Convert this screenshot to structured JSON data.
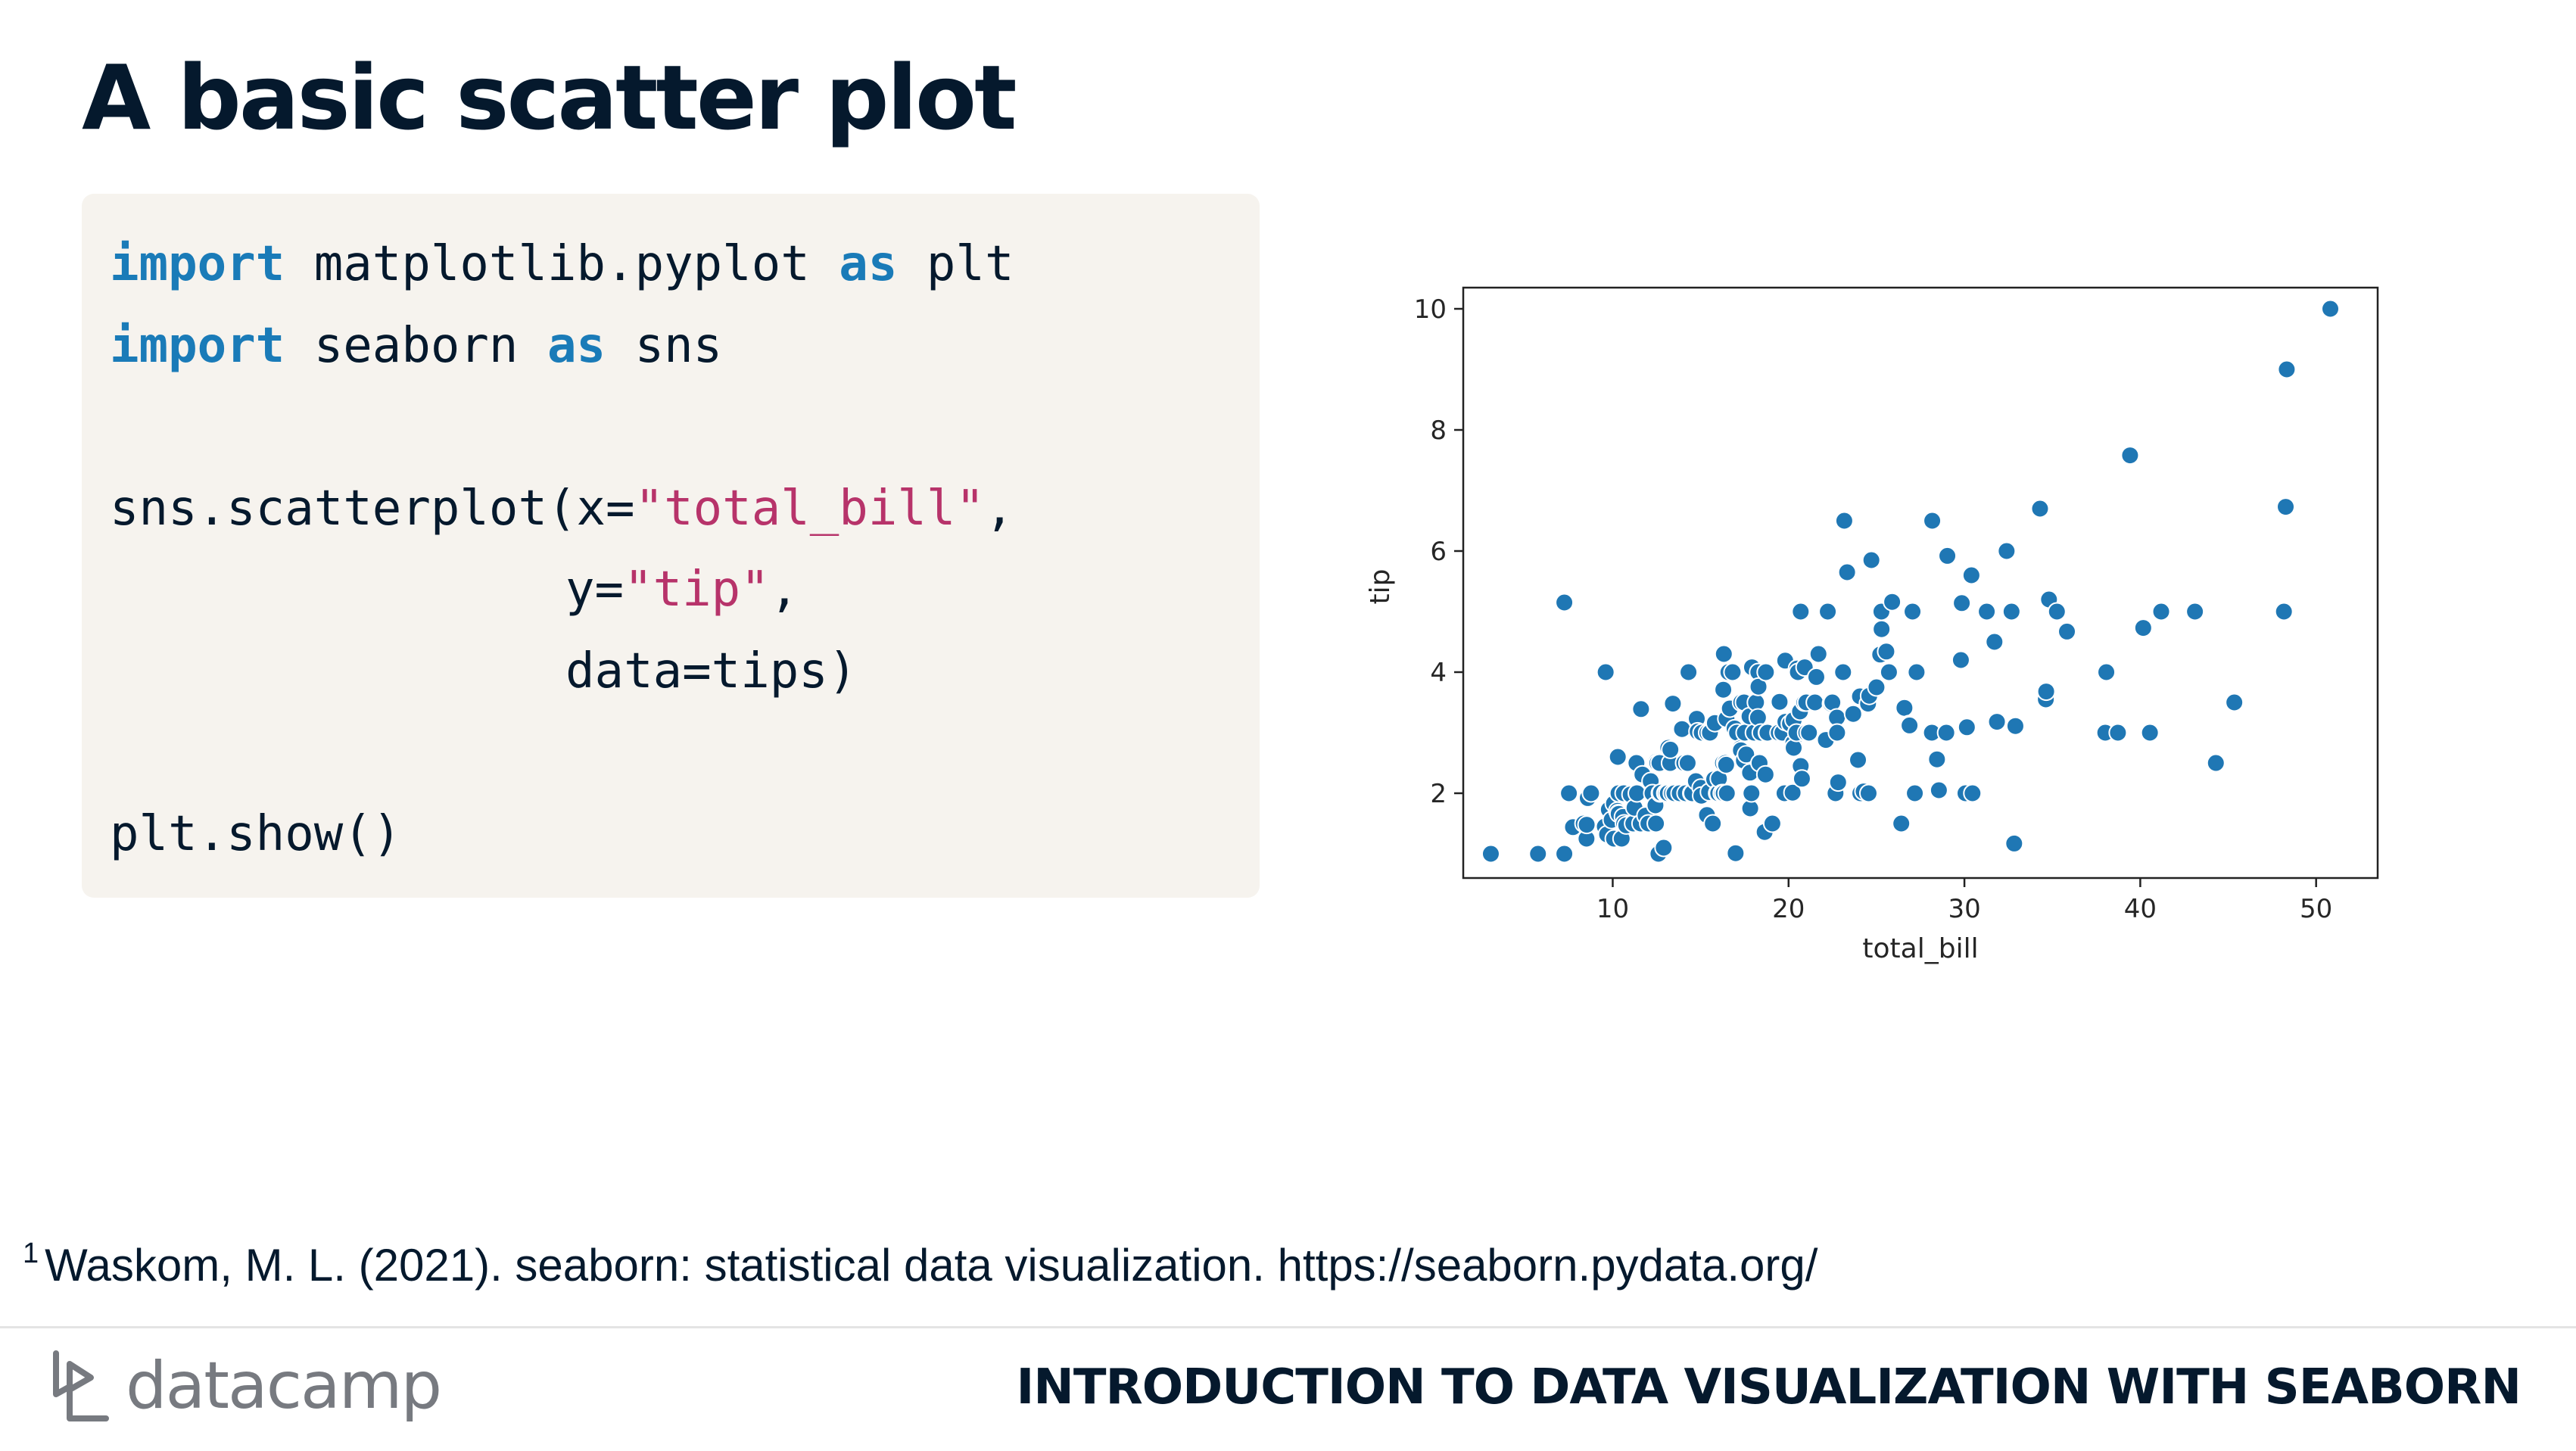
{
  "slide": {
    "title": "A basic scatter plot"
  },
  "code": {
    "line1": {
      "kw1": "import",
      "rest1": " matplotlib.pyplot ",
      "kw2": "as",
      "rest2": " plt"
    },
    "line2": {
      "kw1": "import",
      "rest1": " seaborn ",
      "kw2": "as",
      "rest2": " sns"
    },
    "line4": {
      "pre": "sns.scatterplot(x=",
      "str": "\"total_bill\"",
      "post": ","
    },
    "line5": {
      "pre": "y=",
      "str": "\"tip\"",
      "post": ","
    },
    "line6": {
      "text": "data=tips)"
    },
    "line8": {
      "text": "plt.show()"
    }
  },
  "footnote": {
    "marker": "1",
    "text": "Waskom, M. L. (2021). seaborn: statistical data visualization. https://seaborn.pydata.org/"
  },
  "footer": {
    "brand": "datacamp",
    "course_title": "INTRODUCTION TO DATA VISUALIZATION WITH SEABORN"
  },
  "colors": {
    "point": "#1f77b4",
    "keyword": "#1a7bb8",
    "string": "#b7336a",
    "title": "#05192d",
    "code_bg": "#f6f3ee"
  },
  "chart_data": {
    "type": "scatter",
    "title": "",
    "xlabel": "total_bill",
    "ylabel": "tip",
    "xlim": [
      1.5,
      53.5
    ],
    "ylim": [
      0.6,
      10.35
    ],
    "x_ticks": [
      10,
      20,
      30,
      40,
      50
    ],
    "y_ticks": [
      2,
      4,
      6,
      8,
      10
    ],
    "grid": false,
    "series": [
      {
        "points": [
          [
            3.07,
            1.0
          ],
          [
            5.75,
            1.0
          ],
          [
            7.25,
            1.0
          ],
          [
            7.25,
            5.15
          ],
          [
            7.51,
            2.0
          ],
          [
            7.74,
            1.44
          ],
          [
            8.35,
            1.5
          ],
          [
            8.51,
            1.25
          ],
          [
            8.52,
            1.48
          ],
          [
            8.58,
            1.92
          ],
          [
            8.77,
            2.0
          ],
          [
            9.55,
            1.45
          ],
          [
            9.6,
            4.0
          ],
          [
            9.68,
            1.32
          ],
          [
            9.78,
            1.73
          ],
          [
            9.94,
            1.56
          ],
          [
            10.07,
            1.25
          ],
          [
            10.07,
            1.83
          ],
          [
            10.27,
            1.71
          ],
          [
            10.29,
            2.6
          ],
          [
            10.33,
            1.67
          ],
          [
            10.33,
            2.0
          ],
          [
            10.34,
            1.66
          ],
          [
            10.51,
            1.25
          ],
          [
            10.59,
            1.61
          ],
          [
            10.63,
            2.0
          ],
          [
            10.65,
            1.5
          ],
          [
            10.77,
            1.47
          ],
          [
            11.02,
            1.98
          ],
          [
            11.17,
            1.5
          ],
          [
            11.24,
            1.76
          ],
          [
            11.35,
            2.5
          ],
          [
            11.38,
            2.0
          ],
          [
            11.59,
            1.5
          ],
          [
            11.61,
            3.39
          ],
          [
            11.69,
            2.31
          ],
          [
            11.87,
            1.63
          ],
          [
            12.03,
            1.5
          ],
          [
            12.16,
            2.2
          ],
          [
            12.26,
            2.0
          ],
          [
            12.43,
            1.8
          ],
          [
            12.46,
            1.5
          ],
          [
            12.48,
            2.52
          ],
          [
            12.54,
            2.5
          ],
          [
            12.6,
            1.0
          ],
          [
            12.66,
            2.5
          ],
          [
            12.69,
            2.0
          ],
          [
            12.74,
            2.01
          ],
          [
            12.9,
            1.1
          ],
          [
            13.0,
            2.0
          ],
          [
            13.03,
            2.0
          ],
          [
            13.13,
            2.0
          ],
          [
            13.16,
            2.75
          ],
          [
            13.27,
            2.5
          ],
          [
            13.28,
            2.72
          ],
          [
            13.37,
            2.0
          ],
          [
            13.42,
            3.48
          ],
          [
            13.51,
            2.0
          ],
          [
            13.81,
            2.0
          ],
          [
            13.94,
            3.06
          ],
          [
            14.07,
            2.5
          ],
          [
            14.15,
            2.0
          ],
          [
            14.26,
            2.5
          ],
          [
            14.31,
            4.0
          ],
          [
            14.48,
            2.0
          ],
          [
            14.52,
            2.0
          ],
          [
            14.73,
            2.2
          ],
          [
            14.78,
            3.23
          ],
          [
            14.83,
            3.02
          ],
          [
            15.01,
            2.09
          ],
          [
            15.04,
            1.96
          ],
          [
            15.06,
            3.0
          ],
          [
            15.36,
            1.64
          ],
          [
            15.38,
            3.0
          ],
          [
            15.48,
            2.02
          ],
          [
            15.53,
            3.0
          ],
          [
            15.69,
            1.5
          ],
          [
            15.77,
            2.23
          ],
          [
            15.81,
            3.16
          ],
          [
            15.95,
            2.0
          ],
          [
            16.0,
            2.0
          ],
          [
            16.04,
            2.24
          ],
          [
            16.21,
            2.0
          ],
          [
            16.27,
            2.5
          ],
          [
            16.29,
            3.71
          ],
          [
            16.31,
            2.0
          ],
          [
            16.32,
            4.3
          ],
          [
            16.4,
            2.5
          ],
          [
            16.45,
            2.47
          ],
          [
            16.47,
            3.23
          ],
          [
            16.49,
            2.0
          ],
          [
            16.58,
            4.0
          ],
          [
            16.66,
            3.4
          ],
          [
            16.82,
            4.0
          ],
          [
            16.93,
            3.07
          ],
          [
            16.97,
            1.0
          ],
          [
            16.99,
            1.01
          ],
          [
            17.07,
            3.0
          ],
          [
            17.26,
            2.74
          ],
          [
            17.29,
            2.71
          ],
          [
            17.31,
            3.5
          ],
          [
            17.46,
            2.54
          ],
          [
            17.47,
            3.5
          ],
          [
            17.51,
            3.0
          ],
          [
            17.59,
            2.64
          ],
          [
            17.78,
            3.27
          ],
          [
            17.81,
            2.34
          ],
          [
            17.82,
            1.75
          ],
          [
            17.89,
            2.0
          ],
          [
            17.92,
            4.08
          ],
          [
            18.04,
            3.0
          ],
          [
            18.15,
            3.5
          ],
          [
            18.24,
            3.76
          ],
          [
            18.26,
            3.25
          ],
          [
            18.28,
            4.0
          ],
          [
            18.29,
            3.76
          ],
          [
            18.35,
            2.5
          ],
          [
            18.43,
            3.0
          ],
          [
            18.64,
            1.36
          ],
          [
            18.69,
            2.31
          ],
          [
            18.71,
            4.0
          ],
          [
            18.78,
            3.0
          ],
          [
            18.8,
            3.0
          ],
          [
            19.08,
            1.5
          ],
          [
            19.44,
            3.0
          ],
          [
            19.49,
            3.51
          ],
          [
            19.65,
            3.0
          ],
          [
            19.77,
            2.0
          ],
          [
            19.81,
            4.19
          ],
          [
            19.82,
            3.18
          ],
          [
            20.08,
            3.15
          ],
          [
            20.23,
            2.01
          ],
          [
            20.27,
            2.83
          ],
          [
            20.29,
            3.21
          ],
          [
            20.29,
            2.75
          ],
          [
            20.45,
            3.0
          ],
          [
            20.49,
            4.06
          ],
          [
            20.53,
            4.0
          ],
          [
            20.65,
            3.35
          ],
          [
            20.69,
            2.45
          ],
          [
            20.69,
            5.0
          ],
          [
            20.76,
            2.24
          ],
          [
            20.9,
            3.5
          ],
          [
            20.92,
            4.08
          ],
          [
            21.01,
            3.5
          ],
          [
            21.01,
            3.0
          ],
          [
            21.16,
            3.0
          ],
          [
            21.5,
            3.5
          ],
          [
            21.58,
            3.92
          ],
          [
            21.7,
            4.3
          ],
          [
            22.12,
            2.88
          ],
          [
            22.23,
            5.0
          ],
          [
            22.42,
            3.48
          ],
          [
            22.49,
            3.5
          ],
          [
            22.67,
            2.0
          ],
          [
            22.75,
            3.25
          ],
          [
            22.76,
            3.0
          ],
          [
            22.82,
            2.18
          ],
          [
            23.1,
            4.0
          ],
          [
            23.17,
            6.5
          ],
          [
            23.33,
            5.65
          ],
          [
            23.68,
            3.31
          ],
          [
            23.95,
            2.55
          ],
          [
            24.01,
            2.0
          ],
          [
            24.06,
            3.6
          ],
          [
            24.08,
            2.0
          ],
          [
            24.27,
            2.03
          ],
          [
            24.52,
            3.48
          ],
          [
            24.55,
            2.0
          ],
          [
            24.59,
            3.61
          ],
          [
            24.71,
            5.85
          ],
          [
            25.0,
            3.75
          ],
          [
            25.21,
            4.29
          ],
          [
            25.28,
            5.0
          ],
          [
            25.29,
            4.71
          ],
          [
            25.56,
            4.34
          ],
          [
            25.71,
            4.0
          ],
          [
            25.89,
            5.16
          ],
          [
            26.41,
            1.5
          ],
          [
            26.59,
            3.41
          ],
          [
            26.86,
            3.14
          ],
          [
            26.88,
            3.12
          ],
          [
            27.05,
            5.0
          ],
          [
            27.18,
            2.0
          ],
          [
            27.2,
            4.0
          ],
          [
            27.28,
            4.0
          ],
          [
            28.15,
            3.0
          ],
          [
            28.17,
            6.5
          ],
          [
            28.44,
            2.56
          ],
          [
            28.55,
            2.05
          ],
          [
            28.97,
            3.0
          ],
          [
            29.03,
            5.92
          ],
          [
            29.8,
            4.2
          ],
          [
            29.85,
            5.14
          ],
          [
            30.06,
            2.0
          ],
          [
            30.14,
            3.09
          ],
          [
            30.4,
            5.6
          ],
          [
            30.46,
            2.0
          ],
          [
            31.27,
            5.0
          ],
          [
            31.71,
            4.5
          ],
          [
            31.85,
            3.18
          ],
          [
            32.4,
            6.0
          ],
          [
            32.68,
            5.0
          ],
          [
            32.83,
            1.17
          ],
          [
            32.9,
            3.11
          ],
          [
            34.3,
            6.7
          ],
          [
            34.63,
            3.55
          ],
          [
            34.65,
            3.68
          ],
          [
            34.81,
            5.2
          ],
          [
            35.26,
            5.0
          ],
          [
            35.83,
            4.67
          ],
          [
            38.01,
            3.0
          ],
          [
            38.07,
            4.0
          ],
          [
            38.73,
            3.0
          ],
          [
            39.42,
            7.58
          ],
          [
            40.17,
            4.73
          ],
          [
            40.55,
            3.0
          ],
          [
            41.19,
            5.0
          ],
          [
            43.11,
            5.0
          ],
          [
            44.3,
            2.5
          ],
          [
            45.35,
            3.5
          ],
          [
            48.17,
            5.0
          ],
          [
            48.27,
            6.73
          ],
          [
            48.33,
            9.0
          ],
          [
            50.81,
            10.0
          ]
        ]
      }
    ]
  }
}
